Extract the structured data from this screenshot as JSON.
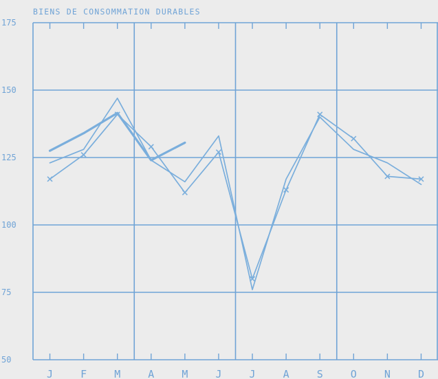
{
  "chart_data": {
    "type": "line",
    "title": "BIENS DE CONSOMMATION DURABLES",
    "xlabel": "",
    "ylabel": "",
    "categories": [
      "J",
      "F",
      "M",
      "A",
      "M",
      "J",
      "J",
      "A",
      "S",
      "O",
      "N",
      "D"
    ],
    "ylim": [
      50,
      175
    ],
    "yticks": [
      175,
      150,
      125,
      100,
      75,
      50
    ],
    "grid": true,
    "series": [
      {
        "style": "plain",
        "values": [
          123,
          128,
          147,
          124,
          116,
          133,
          76,
          117,
          140,
          128,
          123,
          115
        ]
      },
      {
        "style": "cross-markers",
        "values": [
          117,
          126,
          141,
          129,
          112,
          127,
          80,
          113,
          141,
          132,
          118,
          117
        ]
      },
      {
        "style": "bold",
        "values": [
          127.5,
          134,
          141.5,
          124,
          130.5,
          null,
          null,
          null,
          null,
          null,
          null,
          null
        ]
      }
    ],
    "colors": {
      "line": "#7aaedc",
      "grid": "#6fa3d6",
      "text": "#6fa3d6",
      "background": "#ececec"
    }
  }
}
